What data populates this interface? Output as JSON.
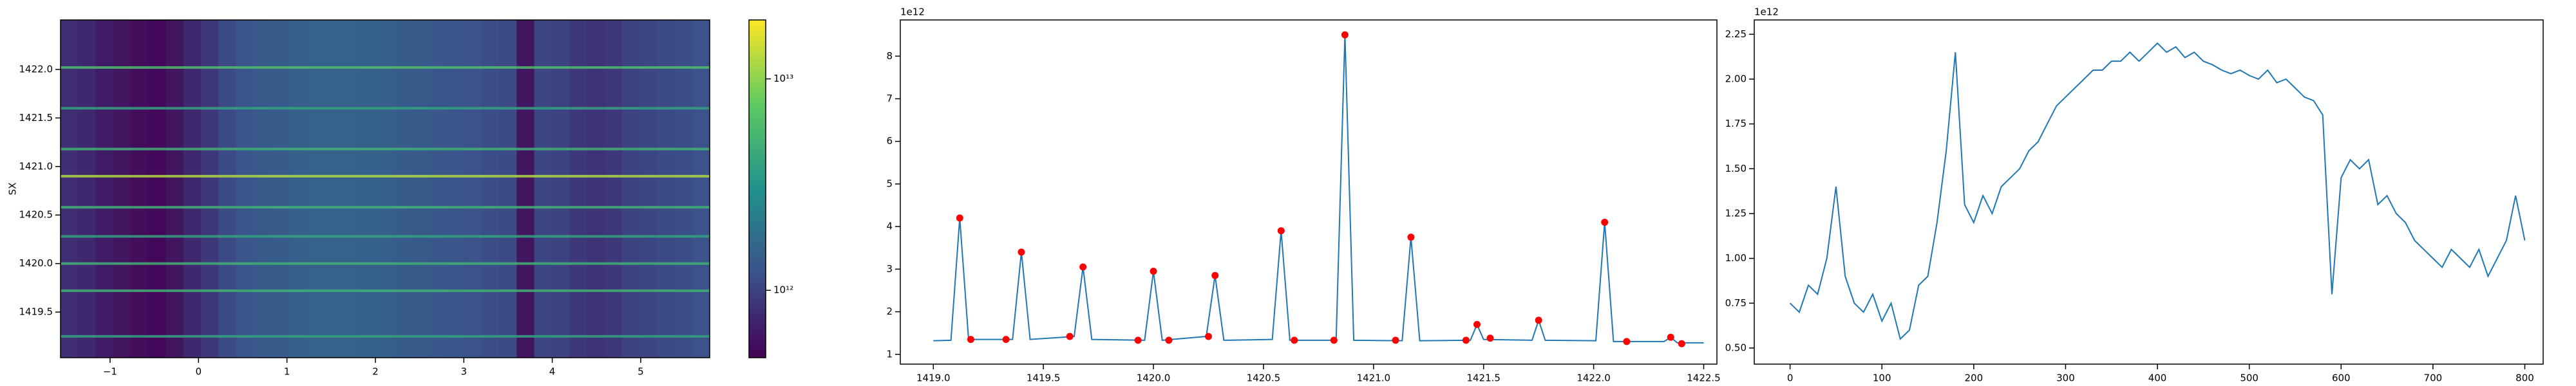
{
  "chart_data": [
    {
      "type": "heatmap",
      "y_label": "SX",
      "xlim": [
        -1.56,
        5.78
      ],
      "ylim": [
        1419.03,
        1422.51
      ],
      "xticks": [
        {
          "value": -1,
          "label": "−1"
        },
        0,
        1,
        2,
        3,
        4,
        5
      ],
      "yticks": [
        1419.5,
        {
          "value": 1420.0,
          "label": "1420.0"
        },
        1420.5,
        {
          "value": 1421.0,
          "label": "1421.0"
        },
        1421.5,
        {
          "value": 1422.0,
          "label": "1422.0"
        }
      ],
      "columns": [
        800000000000.0,
        750000000000.0,
        650000000000.0,
        600000000000.0,
        550000000000.0,
        520000000000.0,
        600000000000.0,
        750000000000.0,
        900000000000.0,
        1100000000000.0,
        1250000000000.0,
        1350000000000.0,
        1400000000000.0,
        1450000000000.0,
        1500000000000.0,
        1500000000000.0,
        1500000000000.0,
        1480000000000.0,
        1450000000000.0,
        1400000000000.0,
        1350000000000.0,
        1300000000000.0,
        1250000000000.0,
        1200000000000.0,
        1150000000000.0,
        1100000000000.0,
        600000000000.0,
        1050000000000.0,
        1000000000000.0,
        900000000000.0,
        850000000000.0,
        900000000000.0,
        1000000000000.0,
        1050000000000.0,
        1100000000000.0,
        1150000000000.0,
        1200000000000.0
      ],
      "rows": [
        1419.25,
        1419.72,
        1420.0,
        1420.28,
        1420.58,
        1420.9,
        1421.18,
        1421.6,
        1422.02
      ],
      "row_values": [
        4000000000000.0,
        5000000000000.0,
        5000000000000.0,
        4000000000000.0,
        5000000000000.0,
        12000000000000.0,
        5000000000000.0,
        4000000000000.0,
        6000000000000.0
      ],
      "clim": [
        480000000000.0,
        19000000000000.0
      ],
      "clog": true,
      "cticks": [
        {
          "value": 1000000000000.0,
          "label": "10¹²"
        },
        {
          "value": 10000000000000.0,
          "label": "10¹³"
        }
      ]
    },
    {
      "type": "line",
      "offset_label": "1e12",
      "color": "#1f77b4",
      "marker_color": "#ff0000",
      "xlim": [
        1418.85,
        1422.56
      ],
      "ylim": [
        0.77,
        8.85
      ],
      "xticks": [
        {
          "value": 1419.0,
          "label": "1419.0"
        },
        1419.5,
        {
          "value": 1420.0,
          "label": "1420.0"
        },
        1420.5,
        {
          "value": 1421.0,
          "label": "1421.0"
        },
        1421.5,
        {
          "value": 1422.0,
          "label": "1422.0"
        },
        1422.5
      ],
      "yticks": [
        1,
        2,
        3,
        4,
        5,
        6,
        7,
        8
      ],
      "x": [
        1419.0,
        1419.08,
        1419.12,
        1419.16,
        1419.36,
        1419.4,
        1419.44,
        1419.64,
        1419.68,
        1419.72,
        1419.96,
        1420.0,
        1420.04,
        1420.24,
        1420.28,
        1420.32,
        1420.54,
        1420.58,
        1420.62,
        1420.83,
        1420.87,
        1420.91,
        1421.13,
        1421.17,
        1421.21,
        1421.44,
        1421.47,
        1421.5,
        1421.72,
        1421.75,
        1421.78,
        1422.01,
        1422.05,
        1422.09,
        1422.32,
        1422.35,
        1422.38,
        1422.5
      ],
      "values": [
        1.32,
        1.33,
        4.2,
        1.35,
        1.35,
        3.4,
        1.35,
        1.42,
        3.05,
        1.35,
        1.33,
        2.95,
        1.33,
        1.42,
        2.85,
        1.33,
        1.35,
        3.9,
        1.33,
        1.33,
        8.5,
        1.33,
        1.32,
        3.75,
        1.32,
        1.33,
        1.7,
        1.35,
        1.33,
        1.8,
        1.33,
        1.32,
        4.1,
        1.3,
        1.3,
        1.4,
        1.27,
        1.27
      ],
      "points_x": [
        1419.12,
        1419.17,
        1419.33,
        1419.4,
        1419.62,
        1419.68,
        1419.93,
        1420.0,
        1420.07,
        1420.25,
        1420.28,
        1420.58,
        1420.64,
        1420.82,
        1420.87,
        1421.1,
        1421.17,
        1421.42,
        1421.47,
        1421.53,
        1421.75,
        1422.05,
        1422.15,
        1422.35,
        1422.4
      ],
      "points_y": [
        4.2,
        1.35,
        1.35,
        3.4,
        1.42,
        3.05,
        1.33,
        2.95,
        1.33,
        1.42,
        2.85,
        3.9,
        1.33,
        1.33,
        8.5,
        1.33,
        3.75,
        1.33,
        1.7,
        1.38,
        1.8,
        4.1,
        1.3,
        1.4,
        1.25
      ]
    },
    {
      "type": "line",
      "offset_label": "1e12",
      "color": "#1f77b4",
      "xlim": [
        -39,
        820
      ],
      "ylim": [
        0.41,
        2.33
      ],
      "xticks": [
        0,
        100,
        200,
        300,
        400,
        500,
        600,
        700,
        800
      ],
      "yticks": [
        {
          "value": 0.5,
          "label": "0.50"
        },
        {
          "value": 0.75,
          "label": "0.75"
        },
        {
          "value": 1.0,
          "label": "1.00"
        },
        {
          "value": 1.25,
          "label": "1.25"
        },
        {
          "value": 1.5,
          "label": "1.50"
        },
        {
          "value": 1.75,
          "label": "1.75"
        },
        {
          "value": 2.0,
          "label": "2.00"
        },
        {
          "value": 2.25,
          "label": "2.25"
        }
      ],
      "x": [
        0,
        10,
        20,
        30,
        40,
        50,
        60,
        70,
        80,
        90,
        100,
        110,
        120,
        130,
        140,
        150,
        160,
        170,
        180,
        190,
        200,
        210,
        220,
        230,
        240,
        250,
        260,
        270,
        280,
        290,
        300,
        310,
        320,
        330,
        340,
        350,
        360,
        370,
        380,
        390,
        400,
        410,
        420,
        430,
        440,
        450,
        460,
        470,
        480,
        490,
        500,
        510,
        520,
        530,
        540,
        550,
        560,
        570,
        580,
        590,
        600,
        610,
        620,
        630,
        640,
        650,
        660,
        670,
        680,
        690,
        700,
        710,
        720,
        730,
        740,
        750,
        760,
        770,
        780,
        790,
        800
      ],
      "values": [
        0.75,
        0.7,
        0.85,
        0.8,
        1.0,
        1.4,
        0.9,
        0.75,
        0.7,
        0.8,
        0.65,
        0.75,
        0.55,
        0.6,
        0.85,
        0.9,
        1.2,
        1.6,
        2.15,
        1.3,
        1.2,
        1.35,
        1.25,
        1.4,
        1.45,
        1.5,
        1.6,
        1.65,
        1.75,
        1.85,
        1.9,
        1.95,
        2.0,
        2.05,
        2.05,
        2.1,
        2.1,
        2.15,
        2.1,
        2.15,
        2.2,
        2.15,
        2.18,
        2.12,
        2.15,
        2.1,
        2.08,
        2.05,
        2.03,
        2.05,
        2.02,
        2.0,
        2.05,
        1.98,
        2.0,
        1.95,
        1.9,
        1.88,
        1.8,
        0.8,
        1.45,
        1.55,
        1.5,
        1.55,
        1.3,
        1.35,
        1.25,
        1.2,
        1.1,
        1.05,
        1.0,
        0.95,
        1.05,
        1.0,
        0.95,
        1.05,
        0.9,
        1.0,
        1.1,
        1.35,
        1.1
      ]
    }
  ]
}
